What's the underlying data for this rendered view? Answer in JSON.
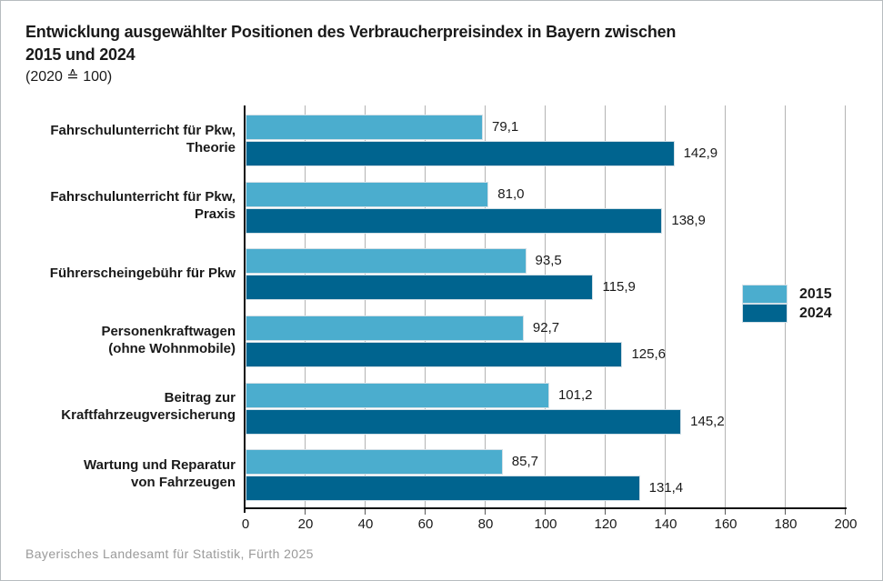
{
  "title": {
    "line1": "Entwicklung ausgewählter Positionen des Verbraucherpreisindex in Bayern zwischen",
    "line2": "2015 und 2024",
    "subtitle": "(2020 ≙ 100)"
  },
  "footer": "Bayerisches Landesamt für Statistik, Fürth 2025",
  "colors": {
    "series2015": "#4badce",
    "series2024": "#00648f",
    "gridline": "#b4b4b4",
    "axis": "#111111",
    "footer_text": "#9a9a9a"
  },
  "legend": {
    "items": [
      {
        "label": "2015",
        "color_key": "series2015"
      },
      {
        "label": "2024",
        "color_key": "series2024"
      }
    ]
  },
  "chart_data": {
    "type": "bar",
    "orientation": "horizontal",
    "title": "Entwicklung ausgewählter Positionen des Verbraucherpreisindex in Bayern zwischen 2015 und 2024",
    "subtitle": "(2020 ≙ 100)",
    "categories": [
      [
        "Fahrschulunterricht für Pkw,",
        "Theorie"
      ],
      [
        "Fahrschulunterricht für Pkw,",
        "Praxis"
      ],
      [
        "Führerscheingebühr für Pkw"
      ],
      [
        "Personenkraftwagen",
        "(ohne Wohnmobile)"
      ],
      [
        "Beitrag zur",
        "Kraftfahrzeugversicherung"
      ],
      [
        "Wartung und Reparatur",
        "von Fahrzeugen"
      ]
    ],
    "series": [
      {
        "name": "2015",
        "color_key": "series2015",
        "values": [
          79.1,
          81.0,
          93.5,
          92.7,
          101.2,
          85.7
        ],
        "labels": [
          "79,1",
          "81,0",
          "93,5",
          "92,7",
          "101,2",
          "85,7"
        ]
      },
      {
        "name": "2024",
        "color_key": "series2024",
        "values": [
          142.9,
          138.9,
          115.9,
          125.6,
          145.2,
          131.4
        ],
        "labels": [
          "142,9",
          "138,9",
          "115,9",
          "125,6",
          "145,2",
          "131,4"
        ]
      }
    ],
    "xlim": [
      0,
      200
    ],
    "xticks": [
      "0",
      "20",
      "40",
      "60",
      "80",
      "100",
      "120",
      "140",
      "160",
      "180",
      "200"
    ],
    "grid": true,
    "legend_position": "right-inside"
  }
}
